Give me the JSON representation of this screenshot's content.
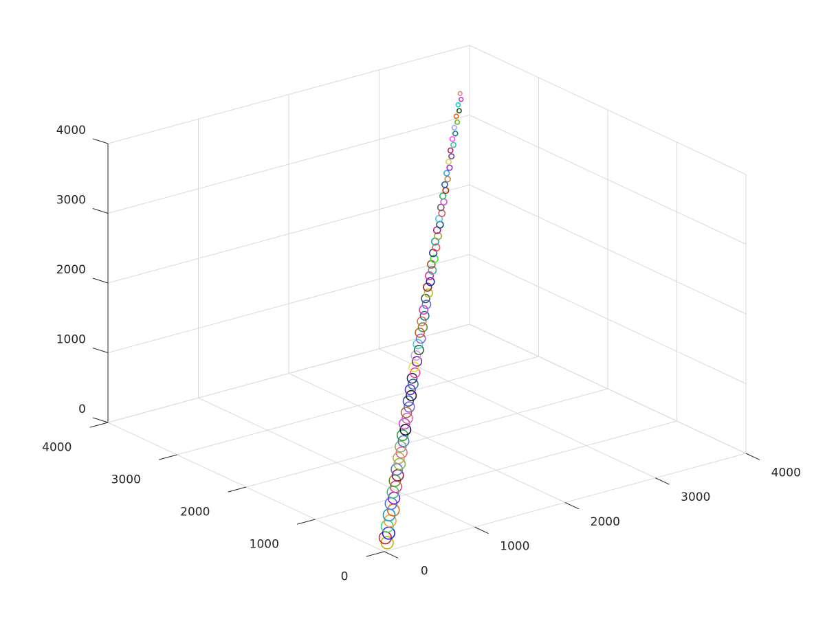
{
  "chart_data": {
    "type": "scatter3d",
    "xlim": [
      0,
      4000
    ],
    "ylim": [
      0,
      4000
    ],
    "zlim": [
      0,
      4000
    ],
    "xticks": [
      0,
      1000,
      2000,
      3000,
      4000
    ],
    "yticks": [
      0,
      1000,
      2000,
      3000,
      4000
    ],
    "zticks": [
      0,
      1000,
      2000,
      3000,
      4000
    ],
    "grid": true,
    "x": [
      70,
      110,
      140,
      200,
      240,
      290,
      330,
      380,
      420,
      470,
      510,
      560,
      600,
      650,
      690,
      740,
      780,
      830,
      870,
      920,
      960,
      1010,
      1050,
      1100,
      1140,
      1190,
      1230,
      1280,
      1320,
      1370,
      1410,
      1460,
      1500,
      1550,
      1590,
      1640,
      1680,
      1730,
      1770,
      1820,
      1860,
      1910,
      1950,
      2000,
      2040,
      2090,
      2130,
      2180,
      2220,
      2270,
      2310,
      2360,
      2400,
      2450,
      2490,
      2540,
      2580,
      2630,
      2670,
      2720,
      2760,
      2810,
      2850,
      2900,
      2940,
      2990,
      3030,
      3080,
      3120,
      3170,
      3210,
      3260,
      3300,
      3350,
      3390,
      3440,
      3480,
      3530,
      3570,
      3620
    ],
    "y": [
      50,
      130,
      120,
      220,
      230,
      310,
      300,
      400,
      410,
      490,
      500,
      580,
      590,
      670,
      680,
      760,
      770,
      850,
      860,
      940,
      950,
      1030,
      1040,
      1120,
      1130,
      1210,
      1220,
      1300,
      1310,
      1390,
      1400,
      1480,
      1490,
      1570,
      1580,
      1660,
      1670,
      1750,
      1760,
      1840,
      1850,
      1930,
      1940,
      2020,
      2030,
      2110,
      2120,
      2200,
      2210,
      2290,
      2300,
      2380,
      2390,
      2470,
      2480,
      2560,
      2570,
      2650,
      2660,
      2740,
      2750,
      2830,
      2840,
      2920,
      2930,
      3010,
      3020,
      3100,
      3110,
      3190,
      3200,
      3280,
      3290,
      3370,
      3380,
      3460,
      3470,
      3550,
      3560,
      3640
    ],
    "z": [
      80,
      100,
      160,
      190,
      250,
      280,
      340,
      370,
      430,
      460,
      520,
      550,
      610,
      640,
      700,
      730,
      790,
      820,
      880,
      910,
      970,
      1000,
      1060,
      1090,
      1150,
      1180,
      1240,
      1270,
      1330,
      1360,
      1420,
      1450,
      1510,
      1540,
      1600,
      1630,
      1690,
      1720,
      1780,
      1810,
      1870,
      1900,
      1960,
      1990,
      2050,
      2080,
      2140,
      2170,
      2230,
      2260,
      2320,
      2350,
      2410,
      2440,
      2500,
      2530,
      2590,
      2620,
      2680,
      2710,
      2770,
      2800,
      2860,
      2890,
      2950,
      2980,
      3040,
      3070,
      3130,
      3160,
      3220,
      3250,
      3310,
      3340,
      3400,
      3430,
      3490,
      3520,
      3580,
      3610
    ],
    "sizes": [
      160,
      158,
      156,
      154,
      152,
      150,
      148,
      146,
      144,
      142,
      140,
      138,
      136,
      134,
      132,
      130,
      128,
      126,
      124,
      122,
      120,
      118,
      116,
      114,
      112,
      110,
      108,
      106,
      104,
      102,
      100,
      98,
      96,
      94,
      92,
      90,
      88,
      86,
      84,
      82,
      80,
      78,
      76,
      74,
      72,
      70,
      68,
      66,
      64,
      62,
      60,
      58,
      56,
      54,
      52,
      50,
      48,
      46,
      44,
      42,
      40,
      38,
      36,
      34,
      32,
      30,
      30,
      28,
      28,
      26,
      26,
      24,
      24,
      22,
      22,
      20,
      20,
      18,
      18,
      16
    ],
    "colors": [
      "#b5b80c",
      "#c21d2f",
      "#1f1fe0",
      "#3fd26b",
      "#e8a33a",
      "#1f8fcf",
      "#d2691e",
      "#4b6fd6",
      "#7a1fd6",
      "#3fbf6a",
      "#e0437a",
      "#6b8e23",
      "#8b1a4a",
      "#5a6fd0",
      "#7fc241",
      "#c0a05a",
      "#e96a7a",
      "#8fa87a",
      "#4a7abf",
      "#2e9f3a",
      "#101030",
      "#c03fd0",
      "#e05fb0",
      "#a06a3a",
      "#7f5ad6",
      "#3050a0",
      "#202020",
      "#5a2ad0",
      "#3a6fb0",
      "#2a2a5a",
      "#ff3fa0",
      "#e0e030",
      "#7a1fa0",
      "#d0a0e0",
      "#306030",
      "#3fd0e0",
      "#9060d0",
      "#c06030",
      "#5a8a3a",
      "#e07050",
      "#1f6f8f",
      "#d040b0",
      "#7070d0",
      "#306060",
      "#c0c020",
      "#8f2a2a",
      "#2020c0",
      "#e03090",
      "#50a0a0",
      "#a05030",
      "#40e040",
      "#3a3a8a",
      "#ff5050",
      "#20a0a0",
      "#a0a040",
      "#b02080",
      "#105080",
      "#50c0f0",
      "#d06060",
      "#606060",
      "#e040e0",
      "#20c060",
      "#a03020",
      "#2060a0",
      "#c08040",
      "#40a0e0",
      "#9030c0",
      "#d0d060",
      "#7040a0",
      "#c02060",
      "#40c0a0",
      "#ff40ff",
      "#108080",
      "#a0a0ff",
      "#60c020",
      "#e06020",
      "#205020",
      "#00d0d0",
      "#c040c0",
      "#e08080"
    ]
  }
}
